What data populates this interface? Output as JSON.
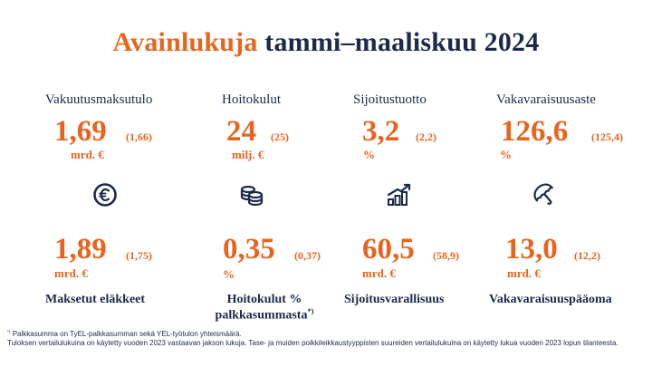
{
  "title": {
    "accent": "Avainlukuja",
    "rest": "tammi–maaliskuu 2024"
  },
  "top_kpis": [
    {
      "label": "Vakuutusmaksutulo",
      "value": "1,69",
      "comparison": "(1,66)",
      "unit": "mrd. €"
    },
    {
      "label": "Hoitokulut",
      "value": "24",
      "comparison": "(25)",
      "unit": "milj. €"
    },
    {
      "label": "Sijoitustuotto",
      "value": "3,2",
      "comparison": "(2,2)",
      "unit": "%"
    },
    {
      "label": "Vakavaraisuusaste",
      "value": "126,6",
      "comparison": "(125,4)",
      "unit": "%"
    }
  ],
  "icons": [
    "euro-icon",
    "coins-icon",
    "growth-chart-icon",
    "umbrella-icon"
  ],
  "bottom_kpis": [
    {
      "value": "1,89",
      "comparison": "(1,75)",
      "unit": "mrd. €",
      "label": "Maksetut eläkkeet"
    },
    {
      "value": "0,35",
      "comparison": "(0,37)",
      "unit": "%",
      "label_line1": "Hoitokulut %",
      "label_line2": "palkkasummasta",
      "label_sup": "*)"
    },
    {
      "value": "60,5",
      "comparison": "(58,9)",
      "unit": "mrd. €",
      "label": "Sijoitusvarallisuus"
    },
    {
      "value": "13,0",
      "comparison": "(12,2)",
      "unit": "mrd. €",
      "label": "Vakavaraisuuspääoma"
    }
  ],
  "footnotes": {
    "marker": "*)",
    "note1": " Palkkasumma on TyEL-palkkasumman sekä YEL-työtulon yhteismäärä.",
    "note2": "Tuloksen vertailulukuina on käytetty vuoden 2023 vastaavan jakson lukuja. Tase- ja muiden poikkileikkaustyyppisten suureiden vertailulukuina on käytetty lukua vuoden 2023 lopun tilanteesta."
  },
  "colors": {
    "accent": "#e8641e",
    "navy": "#1b2a4a"
  }
}
